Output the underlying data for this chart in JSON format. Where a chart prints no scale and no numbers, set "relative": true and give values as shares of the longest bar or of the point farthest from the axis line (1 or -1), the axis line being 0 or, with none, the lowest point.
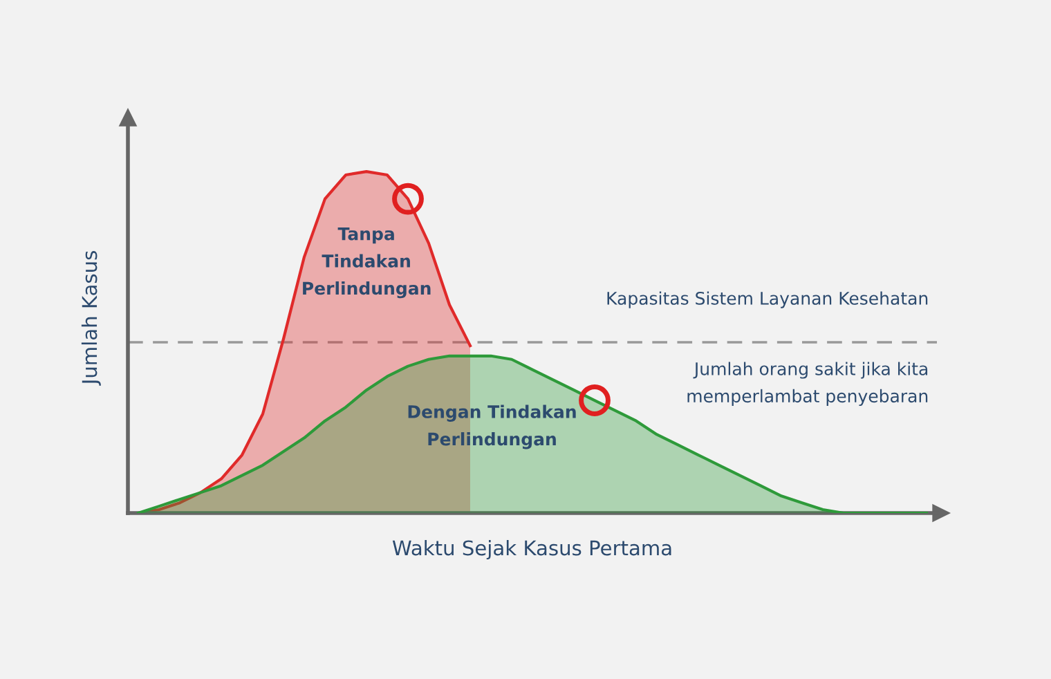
{
  "chart_data": {
    "type": "area",
    "relative": true,
    "xlabel": "Waktu Sejak Kasus Pertama",
    "ylabel": "Jumlah Kasus",
    "categories": [
      null,
      null,
      null,
      null,
      null,
      null,
      null,
      null,
      null,
      null,
      null,
      null,
      null,
      null,
      null,
      null,
      null,
      null,
      null,
      null,
      null,
      null,
      null,
      null,
      null,
      null,
      null,
      null,
      null,
      null,
      null,
      null,
      null,
      null,
      null,
      null,
      null,
      null,
      null
    ],
    "series": [
      {
        "color": "#e02a2a",
        "values": [
          0,
          0.01,
          0.03,
          0.06,
          0.1,
          0.17,
          0.29,
          0.51,
          0.75,
          0.92,
          0.99,
          1,
          0.99,
          0.92,
          0.79,
          0.61,
          0.49,
          null,
          null,
          null,
          null,
          null,
          null,
          null,
          null,
          null,
          null,
          null,
          null,
          null,
          null,
          null,
          null,
          null,
          null,
          null,
          null,
          null,
          null
        ]
      },
      {
        "color": "#2e9a3a",
        "values": [
          0,
          0.02,
          0.04,
          0.06,
          0.08,
          0.11,
          0.14,
          0.18,
          0.22,
          0.27,
          0.31,
          0.36,
          0.4,
          0.43,
          0.45,
          0.46,
          0.46,
          0.46,
          0.45,
          0.42,
          0.39,
          0.36,
          0.33,
          0.3,
          0.27,
          0.23,
          0.2,
          0.17,
          0.14,
          0.11,
          0.08,
          0.05,
          0.03,
          0.01,
          0,
          0,
          0,
          0,
          0
        ]
      }
    ],
    "ref_lines": [
      {
        "axis": "y",
        "value": 0.5,
        "label": "Kapasitas Sistem Layanan Kesehatan",
        "color": "#999999",
        "line_style": "dashed"
      }
    ],
    "annotations": [
      "Tanpa\nTindakan\nPerlindungan",
      "Dengan Tindakan\nPerlindungan",
      "Jumlah orang sakit jika kita\nmemperlambat penyebaran"
    ],
    "tick_labels": false,
    "legend": false
  }
}
